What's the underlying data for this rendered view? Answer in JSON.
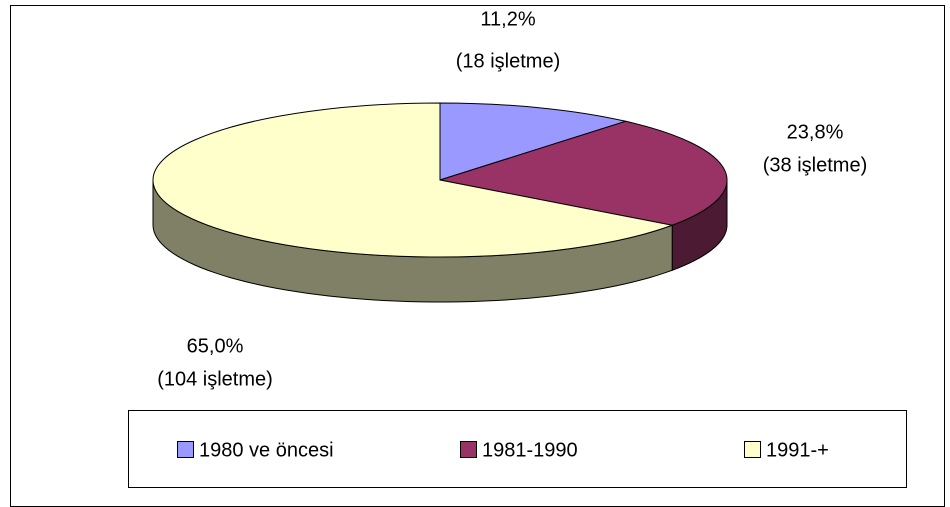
{
  "chart_data": {
    "type": "pie3d",
    "labels": [
      "1980 ve öncesi",
      "1981-1990",
      "1991-+"
    ],
    "values": [
      11.2,
      23.8,
      65.0
    ],
    "value_labels": [
      "11,2%",
      "23,8%",
      "65,0%"
    ],
    "counts": [
      18,
      38,
      104
    ],
    "count_labels": [
      "(18 işletme)",
      "(38 işletme)",
      "(104 işletme)"
    ],
    "colors": [
      "#9999ff",
      "#993366",
      "#ffffcc"
    ],
    "legend": "bottom"
  }
}
